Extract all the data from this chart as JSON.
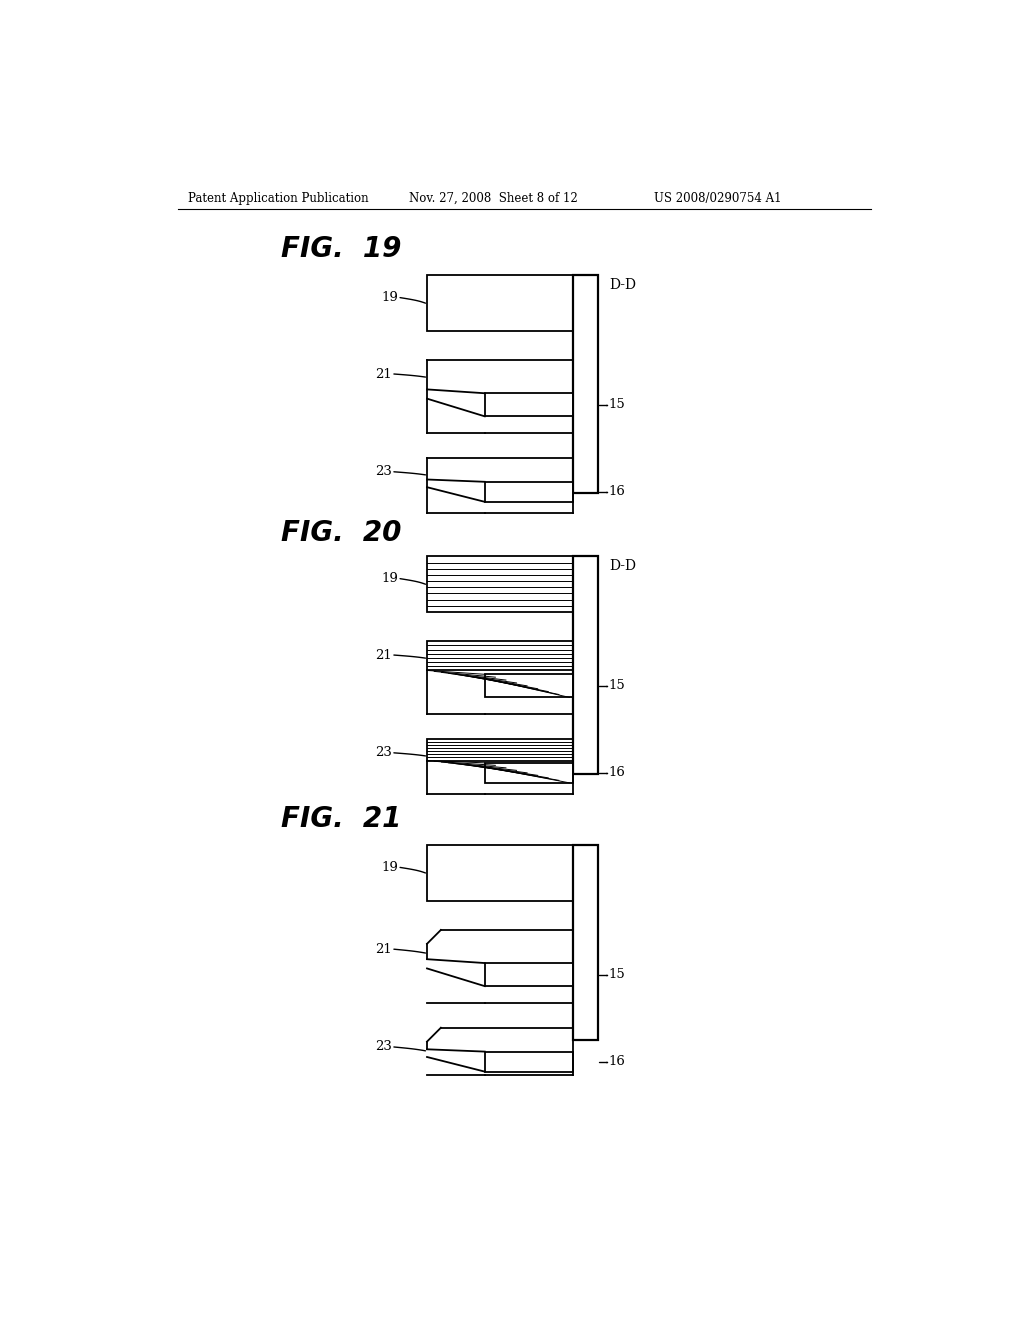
{
  "page_title": "Patent Application Publication",
  "page_date": "Nov. 27, 2008  Sheet 8 of 12",
  "page_patent": "US 2008/0290754 A1",
  "bg_color": "#ffffff",
  "fig_titles": [
    "FIG.  19",
    "FIG.  20",
    "FIG.  21"
  ],
  "label_color": "#000000",
  "lw": 1.3
}
